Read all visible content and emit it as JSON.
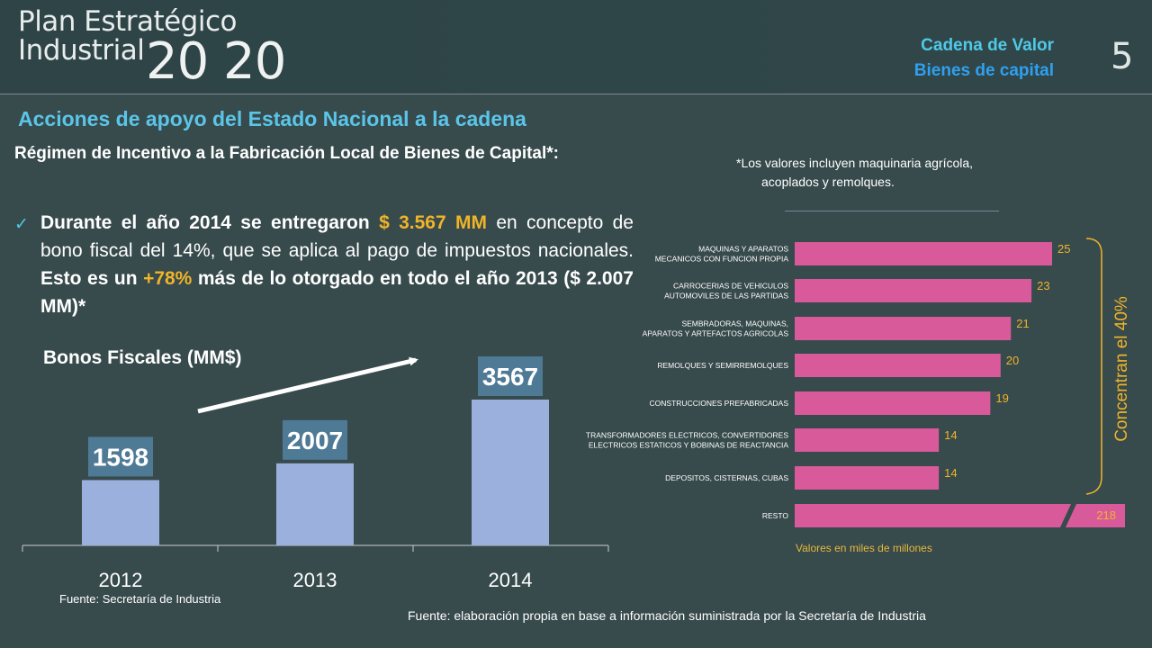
{
  "header": {
    "logo_line1": "Plan Estratégico",
    "logo_line2": "Industrial",
    "logo_year": "20 20",
    "chain_title": "Cadena de Valor",
    "chain_subtitle": "Bienes de capital",
    "page_number": "5"
  },
  "content": {
    "section_title": "Acciones de apoyo del Estado Nacional a la cadena",
    "regime_title": "Régimen de Incentivo a la Fabricación Local de Bienes de Capital*:",
    "bullet": {
      "p1": "Durante el año 2014 se entregaron",
      "amount": "$ 3.567 MM",
      "p2": "en concepto de bono fiscal del 14%, que se aplica al pago de impuestos nacionales.",
      "p3": "Esto es un",
      "growth": "+78%",
      "p4": "más de lo otorgado en todo el año 2013 ($ 2.007 MM)*"
    },
    "footnote_line1": "*Los valores  incluyen maquinaria agrícola,",
    "footnote_line2": "acoplados y remolques.",
    "bonos_title": "Bonos Fiscales  (MM$)",
    "values_note": "Valores en miles de millones",
    "concentran_label": "Concentran el 40%",
    "source_left": "Fuente: Secretaría de Industria",
    "source_right": "Fuente: elaboración propia en base a información suministrada por la Secretaría de Industria"
  },
  "colors": {
    "background": "#374a4c",
    "accent_cyan": "#4fc9e8",
    "accent_blue": "#2fa0f0",
    "highlight_orange": "#f0b429",
    "bar_pink": "#d95a9a",
    "bar_light_blue": "#9bb0dd",
    "label_box": "#4f7a96"
  },
  "chart_data": [
    {
      "type": "bar",
      "categories": [
        "2012",
        "2013",
        "2014"
      ],
      "values": [
        1598,
        2007,
        3567
      ],
      "title": "Bonos Fiscales  (MM$)",
      "ylim": [
        0,
        4000
      ]
    },
    {
      "type": "bar",
      "orientation": "horizontal",
      "categories": [
        "MAQUINAS Y APARATOS MECANICOS CON FUNCION PROPIA",
        "CARROCERIAS DE VEHICULOS AUTOMOVILES DE LAS PARTIDAS",
        "SEMBRADORAS, MAQUINAS, APARATOS Y ARTEFACTOS AGRICOLAS",
        "REMOLQUES Y SEMIRREMOLQUES",
        "CONSTRUCCIONES PREFABRICADAS",
        "TRANSFORMADORES ELECTRICOS, CONVERTIDORES ELECTRICOS ESTATICOS Y BOBINAS DE REACTANCIA",
        "DEPOSITOS, CISTERNAS, CUBAS",
        "RESTO"
      ],
      "category_lines": [
        [
          "MAQUINAS Y APARATOS",
          "MECANICOS CON FUNCION PROPIA"
        ],
        [
          "CARROCERIAS DE VEHICULOS",
          "AUTOMOVILES DE LAS PARTIDAS"
        ],
        [
          "SEMBRADORAS, MAQUINAS,",
          "APARATOS Y ARTEFACTOS AGRICOLAS"
        ],
        [
          "REMOLQUES Y SEMIRREMOLQUES"
        ],
        [
          "CONSTRUCCIONES PREFABRICADAS"
        ],
        [
          "TRANSFORMADORES ELECTRICOS, CONVERTIDORES",
          "ELECTRICOS ESTATICOS Y BOBINAS DE REACTANCIA"
        ],
        [
          "DEPOSITOS, CISTERNAS, CUBAS"
        ],
        [
          "RESTO"
        ]
      ],
      "values": [
        25,
        23,
        21,
        20,
        19,
        14,
        14,
        218
      ],
      "note": "Valores en miles de millones"
    }
  ]
}
